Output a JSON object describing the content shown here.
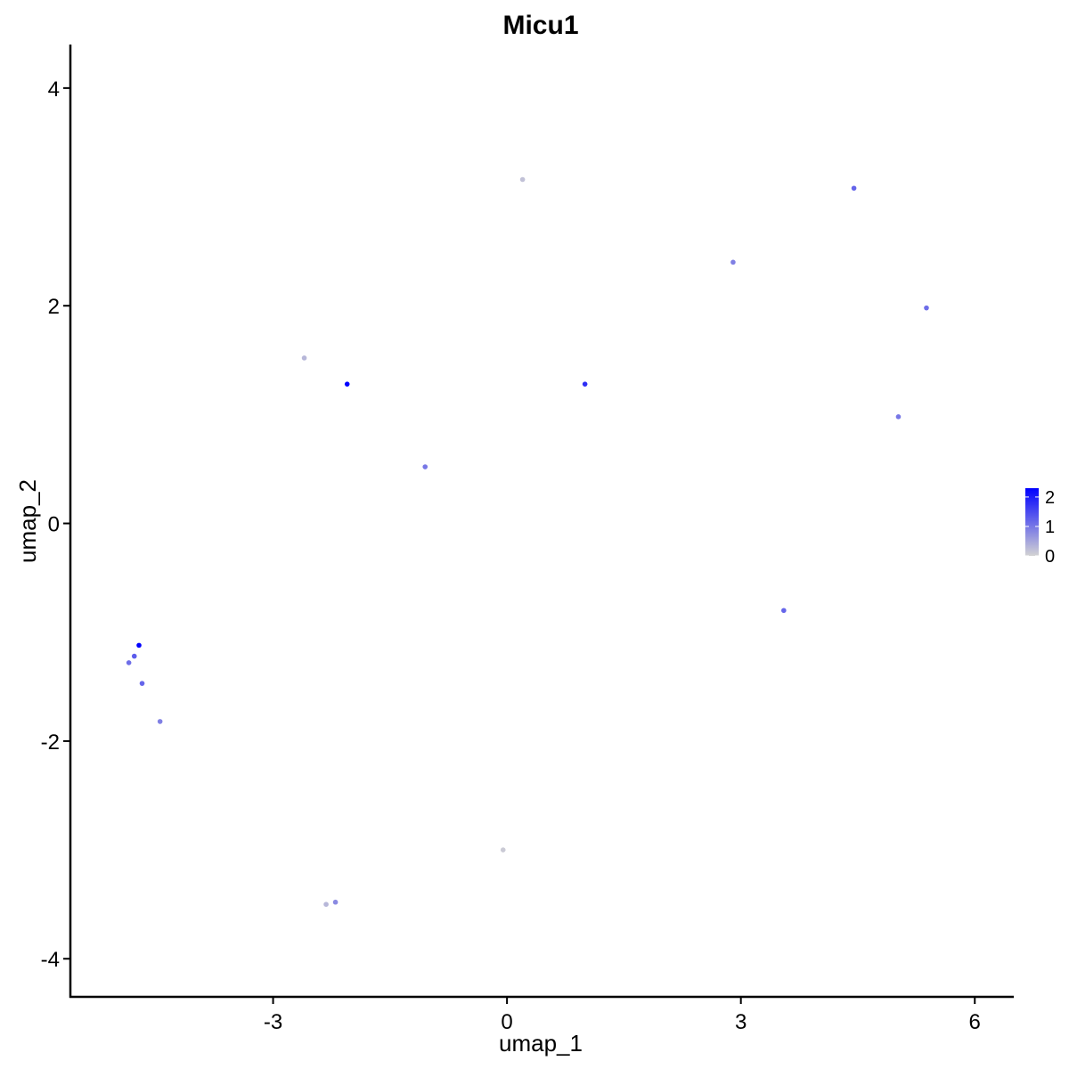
{
  "chart_data": {
    "type": "scatter",
    "title": "Micu1",
    "xlabel": "umap_1",
    "ylabel": "umap_2",
    "xlim": [
      -5.6,
      6.5
    ],
    "ylim": [
      -4.35,
      4.4
    ],
    "x_ticks": [
      -3,
      0,
      3,
      6
    ],
    "y_ticks": [
      -4,
      -2,
      0,
      2,
      4
    ],
    "x_tick_labels": [
      "-3",
      "0",
      "3",
      "6"
    ],
    "y_tick_labels": [
      "-4",
      "-2",
      "0",
      "2",
      "4"
    ],
    "grid": false,
    "legend": {
      "position": "right",
      "type": "colorbar",
      "ticks": [
        0,
        1,
        2
      ],
      "tick_labels": [
        "0",
        "1",
        "2"
      ],
      "range": [
        0,
        2.3
      ],
      "low_color": "#d3d3d3",
      "high_color": "#0000ff"
    },
    "points": [
      {
        "x": -4.72,
        "y": -1.12,
        "value": 2.4
      },
      {
        "x": -4.78,
        "y": -1.22,
        "value": 1.3
      },
      {
        "x": -4.85,
        "y": -1.28,
        "value": 1.1
      },
      {
        "x": -4.68,
        "y": -1.47,
        "value": 1.2
      },
      {
        "x": -4.45,
        "y": -1.82,
        "value": 0.9
      },
      {
        "x": -2.05,
        "y": 1.28,
        "value": 2.3
      },
      {
        "x": 0.2,
        "y": 3.16,
        "value": 0.2
      },
      {
        "x": -2.2,
        "y": -3.48,
        "value": 0.8
      },
      {
        "x": -2.32,
        "y": -3.5,
        "value": 0.3
      },
      {
        "x": -0.05,
        "y": -3.0,
        "value": 0.1
      },
      {
        "x": 4.45,
        "y": 3.08,
        "value": 1.2
      },
      {
        "x": 5.38,
        "y": 1.98,
        "value": 1.1
      },
      {
        "x": 5.02,
        "y": 0.98,
        "value": 1.0
      },
      {
        "x": 3.55,
        "y": -0.8,
        "value": 1.2
      },
      {
        "x": 1.0,
        "y": 1.28,
        "value": 1.8
      },
      {
        "x": -1.05,
        "y": 0.52,
        "value": 1.0
      },
      {
        "x": -2.6,
        "y": 1.52,
        "value": 0.3
      },
      {
        "x": 2.9,
        "y": 2.4,
        "value": 0.9
      }
    ]
  }
}
